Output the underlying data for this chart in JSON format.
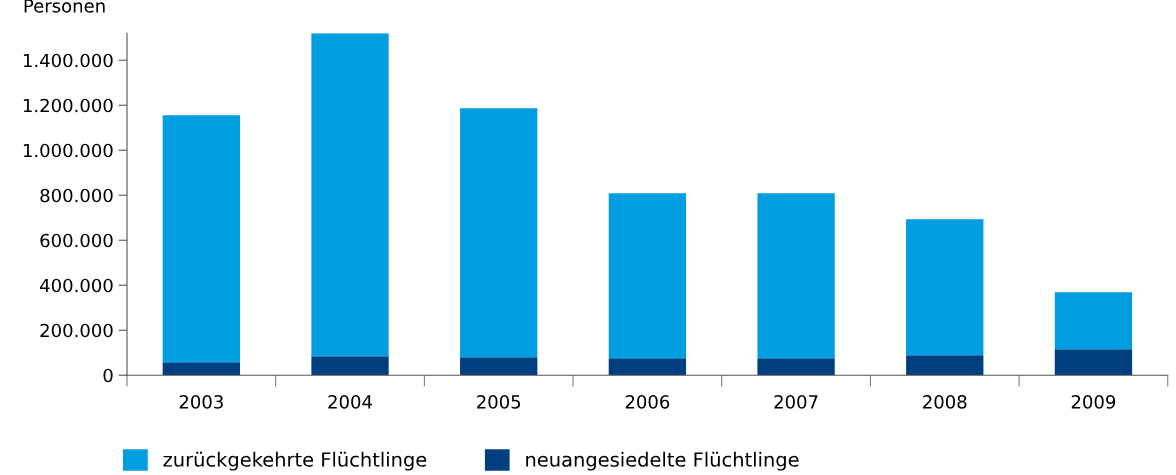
{
  "chart_data": {
    "type": "bar",
    "stacked": true,
    "ylabel": "Personen",
    "categories": [
      "2003",
      "2004",
      "2005",
      "2006",
      "2007",
      "2008",
      "2009"
    ],
    "series": [
      {
        "name": "neuangesiedelte Flüchtlinge",
        "color": "#003f7f",
        "values": [
          58000,
          84000,
          80000,
          76000,
          76000,
          89000,
          116000
        ]
      },
      {
        "name": "zurückgekehrte Flüchtlinge",
        "color": "#009ee0",
        "values": [
          1097000,
          1436000,
          1107000,
          733000,
          733000,
          604000,
          253000
        ]
      }
    ],
    "ylim": [
      0,
      1520000
    ],
    "yticks": [
      0,
      {
        "value": 200000,
        "label": "200.000"
      },
      {
        "value": 400000,
        "label": "400.000"
      },
      {
        "value": 600000,
        "label": "600.000"
      },
      {
        "value": 800000,
        "label": "800.000"
      },
      {
        "value": 1000000,
        "label": "1.000.000"
      },
      {
        "value": 1200000,
        "label": "1.200.000"
      },
      {
        "value": 1400000,
        "label": "1.400.000"
      }
    ],
    "grid": false,
    "legend": "bottom"
  }
}
